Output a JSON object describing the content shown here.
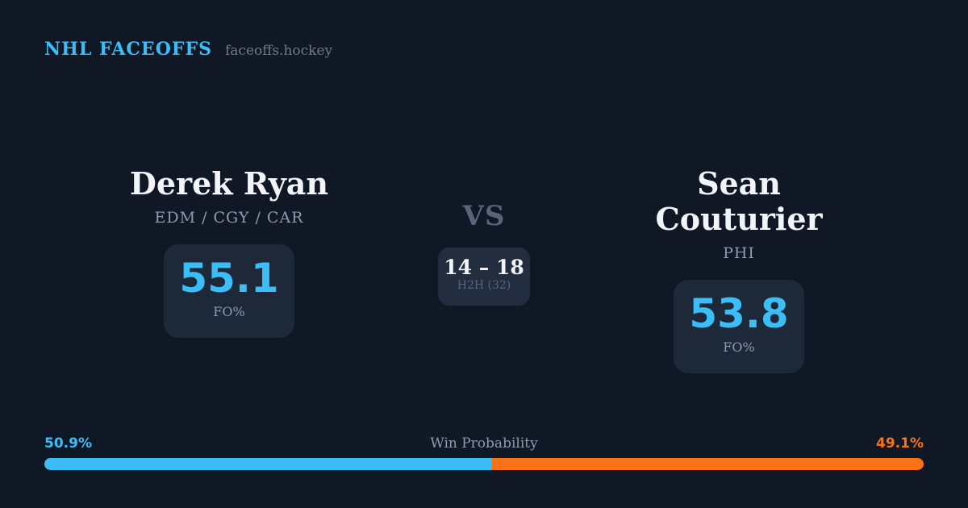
{
  "header": {
    "brand": "NHL FACEOFFS",
    "site": "faceoffs.hockey"
  },
  "players": {
    "left": {
      "name": "Derek Ryan",
      "teams": "EDM / CGY / CAR",
      "fo_value": "55.1",
      "fo_label": "FO%"
    },
    "right": {
      "name": "Sean Couturier",
      "teams": "PHI",
      "fo_value": "53.8",
      "fo_label": "FO%"
    }
  },
  "versus": {
    "label": "VS",
    "h2h_score": "14 – 18",
    "h2h_label": "H2H (32)"
  },
  "win_probability": {
    "title": "Win Probability",
    "left_label": "50.9%",
    "right_label": "49.1%",
    "left_pct": 50.9,
    "right_pct": 49.1
  },
  "colors": {
    "background": "#101826",
    "card": "#1d2939",
    "card_h2h": "#222e40",
    "accent_blue": "#3bbdf8",
    "accent_orange": "#f97316",
    "text_primary": "#f2f4f7",
    "text_secondary": "#8e9aad",
    "text_muted": "#57657b",
    "text_site": "#6e7a8d"
  },
  "chart_data": {
    "type": "bar",
    "title": "Win Probability",
    "categories": [
      "Derek Ryan",
      "Sean Couturier"
    ],
    "series": [
      {
        "name": "Win Probability %",
        "values": [
          50.9,
          49.1
        ]
      },
      {
        "name": "FO%",
        "values": [
          55.1,
          53.8
        ]
      },
      {
        "name": "H2H faceoff wins (of 32)",
        "values": [
          14,
          18
        ]
      }
    ],
    "colors": [
      "#3bbdf8",
      "#f97316"
    ],
    "xlabel": "",
    "ylabel": "",
    "legend_position": "none",
    "grid": false
  }
}
